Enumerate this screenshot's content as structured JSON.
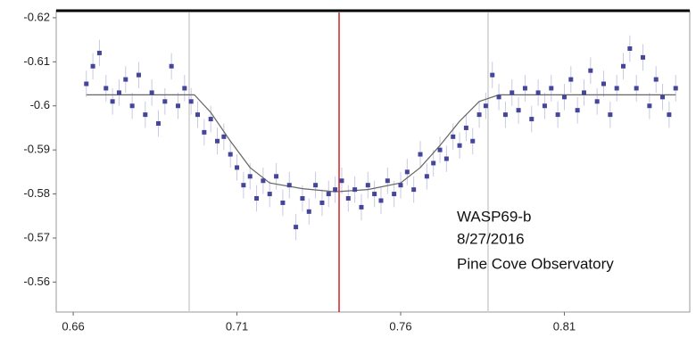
{
  "chart_data": {
    "type": "scatter",
    "annotations": [
      "WASP69-b",
      "8/27/2016",
      "Pine Cove Observatory"
    ],
    "xlim": [
      0.6548,
      0.8483
    ],
    "ylim": [
      -0.5532,
      -0.6216
    ],
    "xticks": [
      0.66,
      0.71,
      0.76,
      0.81
    ],
    "yticks": [
      -0.62,
      -0.61,
      -0.6,
      -0.59,
      -0.58,
      -0.57,
      -0.56
    ],
    "point_color": "#45459a",
    "error_color": "#c9c9e2",
    "error": 0.003,
    "x": [
      0.664,
      0.666,
      0.668,
      0.67,
      0.672,
      0.674,
      0.676,
      0.678,
      0.68,
      0.682,
      0.684,
      0.686,
      0.688,
      0.69,
      0.692,
      0.694,
      0.696,
      0.698,
      0.7,
      0.702,
      0.704,
      0.706,
      0.708,
      0.71,
      0.712,
      0.714,
      0.716,
      0.718,
      0.72,
      0.722,
      0.724,
      0.726,
      0.728,
      0.73,
      0.732,
      0.734,
      0.736,
      0.738,
      0.74,
      0.742,
      0.744,
      0.746,
      0.748,
      0.75,
      0.752,
      0.754,
      0.756,
      0.758,
      0.76,
      0.762,
      0.764,
      0.766,
      0.768,
      0.77,
      0.772,
      0.774,
      0.776,
      0.778,
      0.78,
      0.782,
      0.784,
      0.786,
      0.788,
      0.79,
      0.792,
      0.794,
      0.796,
      0.798,
      0.8,
      0.802,
      0.804,
      0.806,
      0.808,
      0.81,
      0.812,
      0.814,
      0.816,
      0.818,
      0.82,
      0.822,
      0.824,
      0.826,
      0.828,
      0.83,
      0.832,
      0.834,
      0.836,
      0.838,
      0.84,
      0.842,
      0.844
    ],
    "values": [
      -0.605,
      -0.609,
      -0.612,
      -0.604,
      -0.601,
      -0.603,
      -0.606,
      -0.6,
      -0.607,
      -0.598,
      -0.603,
      -0.596,
      -0.601,
      -0.609,
      -0.6,
      -0.604,
      -0.601,
      -0.598,
      -0.594,
      -0.597,
      -0.592,
      -0.593,
      -0.589,
      -0.586,
      -0.582,
      -0.584,
      -0.579,
      -0.583,
      -0.58,
      -0.584,
      -0.578,
      -0.582,
      -0.5725,
      -0.579,
      -0.576,
      -0.582,
      -0.578,
      -0.58,
      -0.581,
      -0.583,
      -0.579,
      -0.581,
      -0.577,
      -0.582,
      -0.58,
      -0.5785,
      -0.583,
      -0.58,
      -0.582,
      -0.585,
      -0.581,
      -0.589,
      -0.584,
      -0.587,
      -0.59,
      -0.588,
      -0.593,
      -0.591,
      -0.595,
      -0.592,
      -0.598,
      -0.6,
      -0.607,
      -0.602,
      -0.598,
      -0.603,
      -0.599,
      -0.604,
      -0.597,
      -0.603,
      -0.6,
      -0.604,
      -0.598,
      -0.602,
      -0.606,
      -0.599,
      -0.603,
      -0.608,
      -0.601,
      -0.605,
      -0.598,
      -0.604,
      -0.609,
      -0.613,
      -0.604,
      -0.611,
      -0.6,
      -0.606,
      -0.602,
      -0.598,
      -0.604
    ],
    "model": {
      "color": "#666666",
      "x": [
        0.664,
        0.697,
        0.702,
        0.708,
        0.714,
        0.72,
        0.73,
        0.74,
        0.75,
        0.76,
        0.766,
        0.772,
        0.778,
        0.784,
        0.79,
        0.844
      ],
      "values": [
        -0.6025,
        -0.6025,
        -0.5985,
        -0.592,
        -0.586,
        -0.5825,
        -0.5812,
        -0.5805,
        -0.581,
        -0.5825,
        -0.586,
        -0.591,
        -0.5965,
        -0.601,
        -0.6025,
        -0.6025
      ]
    },
    "vlines": [
      {
        "x": 0.6954,
        "color": "#cfcfcf"
      },
      {
        "x": 0.7412,
        "color": "#d62020"
      },
      {
        "x": 0.7867,
        "color": "#cfcfcf"
      }
    ]
  }
}
